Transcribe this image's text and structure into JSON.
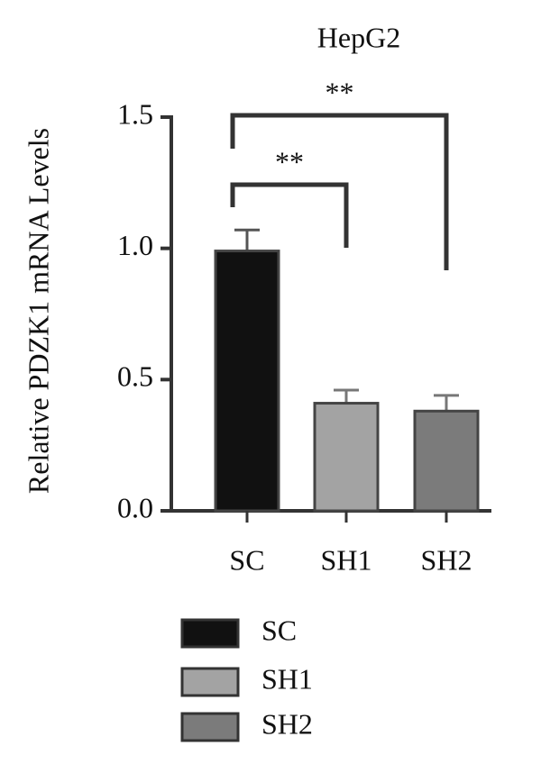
{
  "chart_data": {
    "type": "bar",
    "title": "HepG2",
    "y_label": "Relative PDZK1 mRNA Levels",
    "categories": [
      "SC",
      "SH1",
      "SH2"
    ],
    "values": [
      0.99,
      0.41,
      0.38
    ],
    "errors": [
      0.08,
      0.05,
      0.06
    ],
    "colors": [
      "#111111",
      "#a3a3a3",
      "#7b7b7b"
    ],
    "ylim": [
      0,
      1.5
    ],
    "yticks": [
      {
        "value": 0,
        "label": "0.0"
      },
      {
        "value": 0.5,
        "label": "0.5"
      },
      {
        "value": 1,
        "label": "1.0"
      },
      {
        "value": 1.5,
        "label": "1.5"
      }
    ],
    "annotations": [
      "**",
      "**"
    ]
  }
}
